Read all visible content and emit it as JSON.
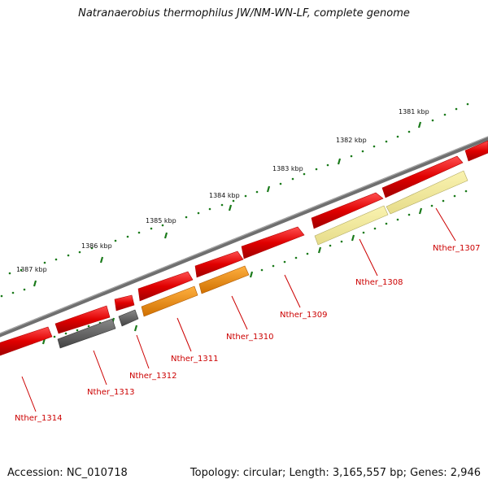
{
  "title": "Natranaerobius thermophilus JW/NM-WN-LF, complete genome",
  "accession": "Accession: NC_010718",
  "summary": "Topology: circular; Length: 3,165,557 bp; Genes: 2,946",
  "colors": {
    "backbone": "#707070",
    "gene_forward": "#e00000",
    "gene_reverse_red": "#e00000",
    "gene_gray": "#555555",
    "gene_orange": "#f08c00",
    "gene_pale": "#f0e68c",
    "tick": "#1a7a1a",
    "label": "#cc0000"
  },
  "scale": {
    "ticks": [
      "1381 kbp",
      "1382 kbp",
      "1383 kbp",
      "1384 kbp",
      "1385 kbp",
      "1386 kbp",
      "1387 kbp"
    ]
  },
  "genes": [
    {
      "id": "Nther_1307",
      "color": "gene_pale"
    },
    {
      "id": "Nther_1308",
      "color": "gene_pale"
    },
    {
      "id": "Nther_1309",
      "color": "gene_forward"
    },
    {
      "id": "Nther_1310",
      "color": "gene_orange"
    },
    {
      "id": "Nther_1311",
      "color": "gene_orange"
    },
    {
      "id": "Nther_1312",
      "color": "gene_gray"
    },
    {
      "id": "Nther_1313",
      "color": "gene_gray"
    },
    {
      "id": "Nther_1314",
      "color": "gene_forward"
    }
  ]
}
